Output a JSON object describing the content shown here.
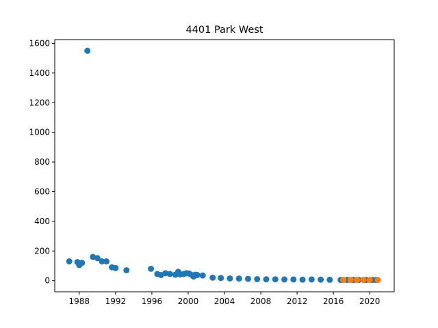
{
  "chart_data": {
    "type": "scatter",
    "title": "4401 Park West",
    "xlabel": "",
    "ylabel": "",
    "xlim": [
      1985.3,
      2022.7
    ],
    "ylim": [
      -75,
      1625
    ],
    "xticks": [
      1988,
      1992,
      1996,
      2000,
      2004,
      2008,
      2012,
      2016,
      2020
    ],
    "yticks": [
      0,
      200,
      400,
      600,
      800,
      1000,
      1200,
      1400,
      1600
    ],
    "grid": false,
    "legend": "none",
    "series": [
      {
        "color": "#1f77b4",
        "points": [
          [
            1986.9,
            130
          ],
          [
            1987.8,
            125
          ],
          [
            1988.0,
            105
          ],
          [
            1988.3,
            120
          ],
          [
            1988.9,
            1550
          ],
          [
            1989.5,
            160
          ],
          [
            1990.0,
            152
          ],
          [
            1990.5,
            130
          ],
          [
            1991.0,
            130
          ],
          [
            1991.6,
            90
          ],
          [
            1992.0,
            85
          ],
          [
            1993.2,
            70
          ],
          [
            1995.9,
            80
          ],
          [
            1996.6,
            45
          ],
          [
            1997.0,
            38
          ],
          [
            1997.5,
            50
          ],
          [
            1998.0,
            45
          ],
          [
            1998.6,
            40
          ],
          [
            1998.9,
            60
          ],
          [
            1999.1,
            42
          ],
          [
            1999.5,
            45
          ],
          [
            1999.8,
            50
          ],
          [
            2000.1,
            48
          ],
          [
            2000.4,
            38
          ],
          [
            2000.6,
            28
          ],
          [
            2000.8,
            40
          ],
          [
            2001.0,
            38
          ],
          [
            2001.6,
            35
          ],
          [
            2002.7,
            20
          ],
          [
            2003.6,
            18
          ],
          [
            2004.6,
            15
          ],
          [
            2005.6,
            14
          ],
          [
            2006.6,
            12
          ],
          [
            2007.6,
            10
          ],
          [
            2008.6,
            9
          ],
          [
            2009.6,
            9
          ],
          [
            2010.6,
            8
          ],
          [
            2011.6,
            8
          ],
          [
            2012.6,
            7
          ],
          [
            2013.6,
            8
          ],
          [
            2014.6,
            7
          ],
          [
            2015.6,
            6
          ],
          [
            2016.8,
            5
          ],
          [
            2017.5,
            5
          ],
          [
            2018.2,
            5
          ],
          [
            2018.8,
            5
          ],
          [
            2019.6,
            5
          ],
          [
            2020.3,
            5
          ],
          [
            2020.7,
            5
          ]
        ]
      },
      {
        "color": "#ff7f0e",
        "points": [
          [
            2017.1,
            5
          ],
          [
            2017.9,
            5
          ],
          [
            2018.6,
            5
          ],
          [
            2019.3,
            5
          ],
          [
            2020.0,
            5
          ],
          [
            2020.9,
            5
          ]
        ]
      }
    ]
  }
}
